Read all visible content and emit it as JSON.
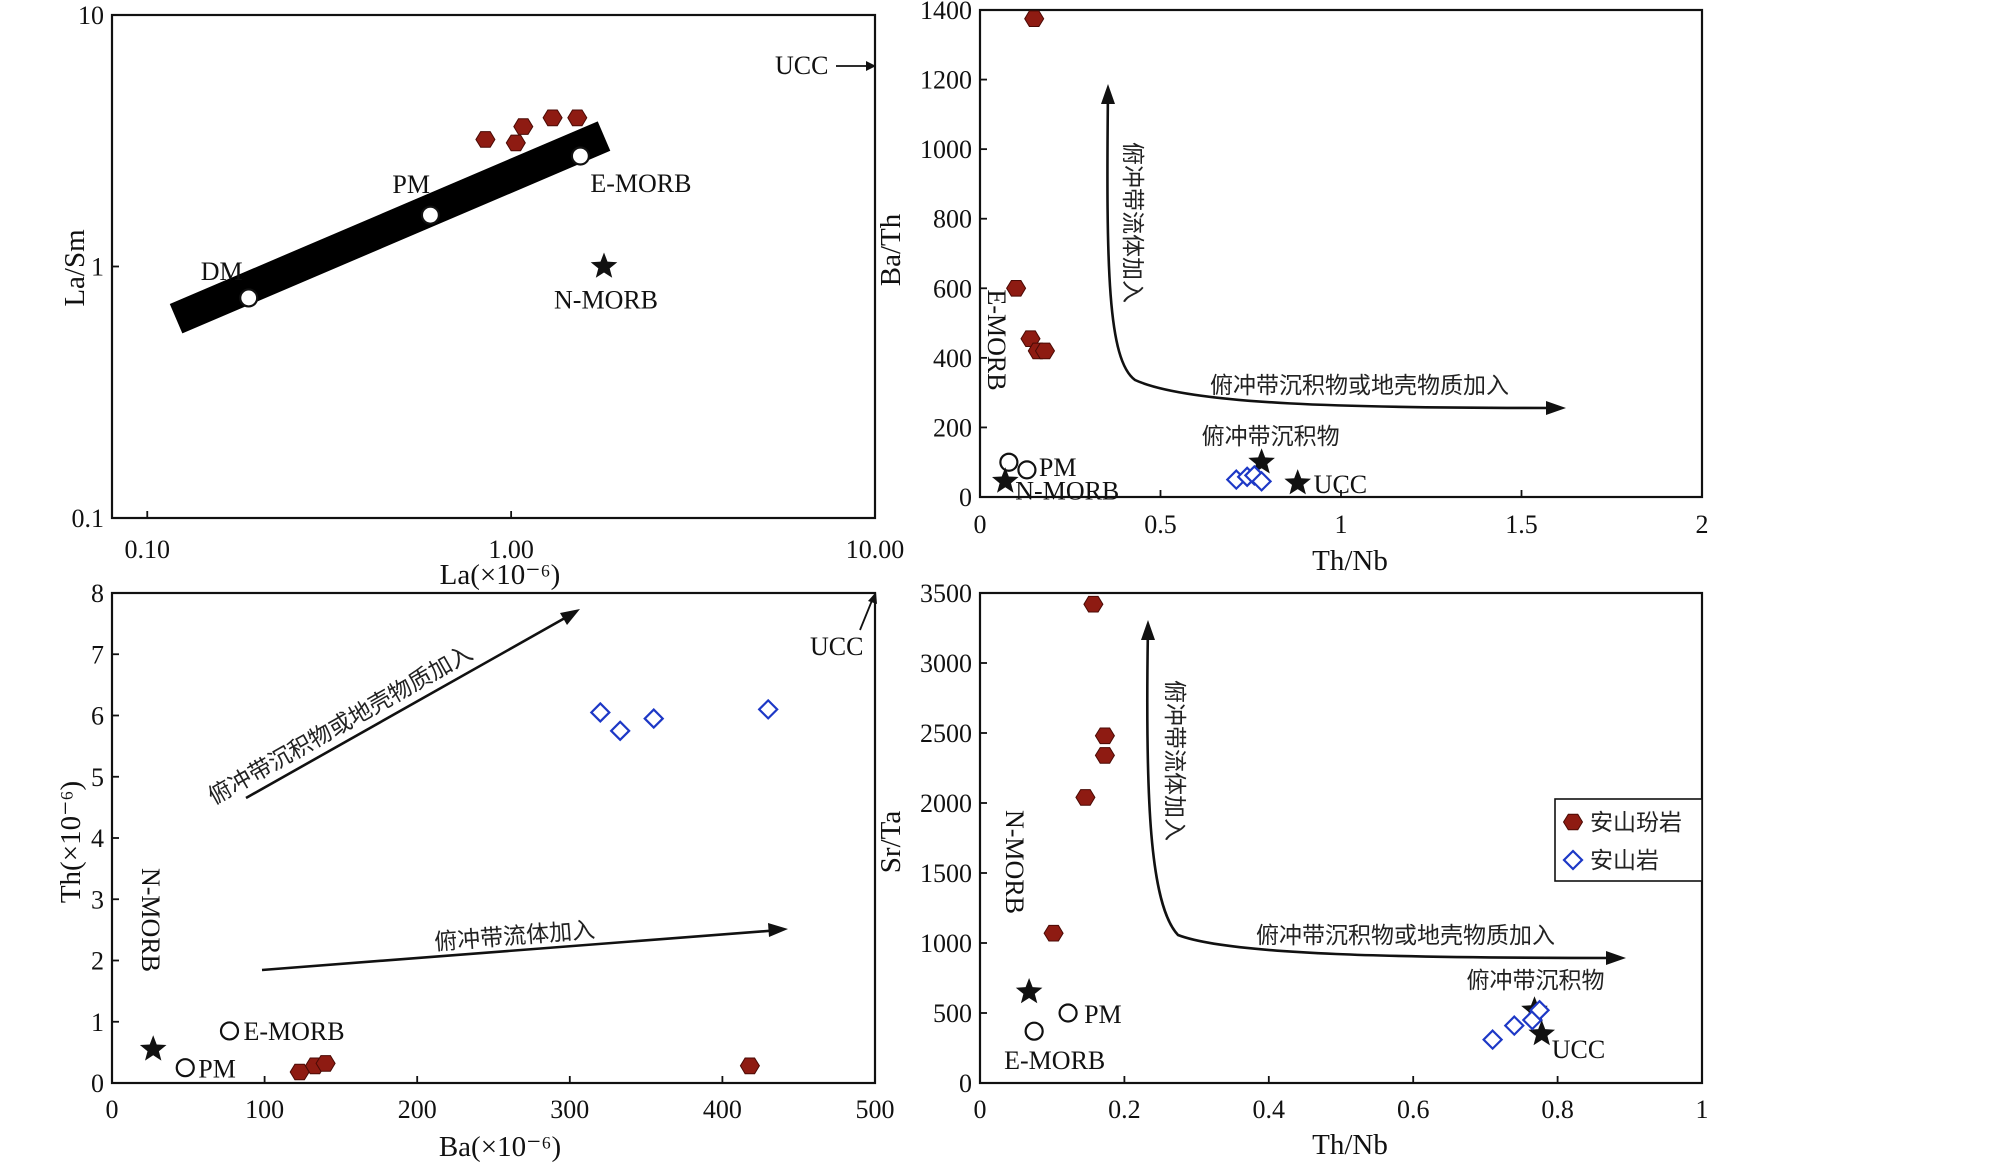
{
  "colors": {
    "andesite_porphyry": "#8e1b12",
    "andesite": "#1d38c6",
    "ink": "#111111"
  },
  "chart_data": [
    {
      "id": "a",
      "type": "scatter",
      "xscale": "log",
      "yscale": "log",
      "xlabel": "La(×10⁻⁶)",
      "ylabel": "La/Sm",
      "xlim": [
        0.08,
        10
      ],
      "ylim": [
        0.1,
        10
      ],
      "xticks": [
        {
          "v": 0.1,
          "label": "0.10"
        },
        {
          "v": 1,
          "label": "1.00"
        },
        {
          "v": 10,
          "label": "10.00"
        }
      ],
      "yticks": [
        {
          "v": 0.1,
          "label": "0.1"
        },
        {
          "v": 1,
          "label": "1"
        },
        {
          "v": 10,
          "label": "10"
        }
      ],
      "series": [
        {
          "name": "安山玢岩",
          "marker": "hexagon",
          "points": [
            [
              0.85,
              3.2
            ],
            [
              1.03,
              3.1
            ],
            [
              1.08,
              3.6
            ],
            [
              1.3,
              3.9
            ],
            [
              1.52,
              3.9
            ]
          ]
        }
      ],
      "refs": [
        {
          "label": "DM",
          "marker": "circle",
          "x": 0.19,
          "y": 0.75
        },
        {
          "label": "PM",
          "marker": "circle",
          "x": 0.6,
          "y": 1.6
        },
        {
          "label": "E-MORB",
          "marker": "circle",
          "x": 1.55,
          "y": 2.75
        },
        {
          "label": "N-MORB",
          "marker": "star",
          "x": 1.8,
          "y": 1.0
        }
      ],
      "band": {
        "from": [
          0.12,
          0.62
        ],
        "to": [
          1.8,
          3.3
        ]
      },
      "ucc_label": "UCC"
    },
    {
      "id": "b",
      "type": "scatter",
      "xlabel": "Th/Nb",
      "ylabel": "Ba/Th",
      "xlim": [
        0,
        2
      ],
      "ylim": [
        0,
        1400
      ],
      "xticks": [
        {
          "v": 0,
          "label": "0"
        },
        {
          "v": 0.5,
          "label": "0.5"
        },
        {
          "v": 1,
          "label": "1"
        },
        {
          "v": 1.5,
          "label": "1.5"
        },
        {
          "v": 2,
          "label": "2"
        }
      ],
      "yticks": [
        {
          "v": 0,
          "label": "0"
        },
        {
          "v": 200,
          "label": "200"
        },
        {
          "v": 400,
          "label": "400"
        },
        {
          "v": 600,
          "label": "600"
        },
        {
          "v": 800,
          "label": "800"
        },
        {
          "v": 1000,
          "label": "1000"
        },
        {
          "v": 1200,
          "label": "1200"
        },
        {
          "v": 1400,
          "label": "1400"
        }
      ],
      "series": [
        {
          "name": "安山玢岩",
          "marker": "hexagon",
          "points": [
            [
              0.15,
              1375
            ],
            [
              0.1,
              600
            ],
            [
              0.14,
              455
            ],
            [
              0.16,
              420
            ],
            [
              0.18,
              420
            ]
          ]
        },
        {
          "name": "安山岩",
          "marker": "diamond",
          "points": [
            [
              0.71,
              50
            ],
            [
              0.74,
              58
            ],
            [
              0.76,
              62
            ],
            [
              0.78,
              45
            ]
          ]
        }
      ],
      "refs": [
        {
          "label": "E-MORB",
          "marker": "circle",
          "x": 0.08,
          "y": 100
        },
        {
          "label": "PM",
          "marker": "circle",
          "x": 0.13,
          "y": 78
        },
        {
          "label": "N-MORB",
          "marker": "star",
          "x": 0.07,
          "y": 45
        },
        {
          "label": "俯冲带沉积物",
          "marker": "star",
          "x": 0.78,
          "y": 100
        },
        {
          "label": "UCC",
          "marker": "star",
          "x": 0.88,
          "y": 40
        }
      ],
      "arrows": {
        "fluid": "俯冲带流体加入",
        "sediment": "俯冲带沉积物或地壳物质加入"
      }
    },
    {
      "id": "c",
      "type": "scatter",
      "xlabel": "Ba(×10⁻⁶)",
      "ylabel": "Th(×10⁻⁶)",
      "xlim": [
        0,
        500
      ],
      "ylim": [
        0,
        8
      ],
      "xticks": [
        {
          "v": 0,
          "label": "0"
        },
        {
          "v": 100,
          "label": "100"
        },
        {
          "v": 200,
          "label": "200"
        },
        {
          "v": 300,
          "label": "300"
        },
        {
          "v": 400,
          "label": "400"
        },
        {
          "v": 500,
          "label": "500"
        }
      ],
      "yticks": [
        {
          "v": 0,
          "label": "0"
        },
        {
          "v": 1,
          "label": "1"
        },
        {
          "v": 2,
          "label": "2"
        },
        {
          "v": 3,
          "label": "3"
        },
        {
          "v": 4,
          "label": "4"
        },
        {
          "v": 5,
          "label": "5"
        },
        {
          "v": 6,
          "label": "6"
        },
        {
          "v": 7,
          "label": "7"
        },
        {
          "v": 8,
          "label": "8"
        }
      ],
      "series": [
        {
          "name": "安山玢岩",
          "marker": "hexagon",
          "points": [
            [
              123,
              0.18
            ],
            [
              133,
              0.28
            ],
            [
              140,
              0.32
            ],
            [
              418,
              0.28
            ]
          ]
        },
        {
          "name": "安山岩",
          "marker": "diamond",
          "points": [
            [
              320,
              6.05
            ],
            [
              333,
              5.75
            ],
            [
              355,
              5.95
            ],
            [
              430,
              6.1
            ]
          ]
        }
      ],
      "refs": [
        {
          "label": "N-MORB",
          "marker": "star",
          "x": 27,
          "y": 0.55
        },
        {
          "label": "E-MORB",
          "marker": "circle",
          "x": 77,
          "y": 0.85
        },
        {
          "label": "PM",
          "marker": "circle",
          "x": 48,
          "y": 0.25
        }
      ],
      "arrows": {
        "sediment": "俯冲带沉积物或地壳物质加入",
        "fluid": "俯冲带流体加入"
      },
      "ucc_label": "UCC"
    },
    {
      "id": "d",
      "type": "scatter",
      "xlabel": "Th/Nb",
      "ylabel": "Sr/Ta",
      "xlim": [
        0,
        1
      ],
      "ylim": [
        0,
        3500
      ],
      "xticks": [
        {
          "v": 0,
          "label": "0"
        },
        {
          "v": 0.2,
          "label": "0.2"
        },
        {
          "v": 0.4,
          "label": "0.4"
        },
        {
          "v": 0.6,
          "label": "0.6"
        },
        {
          "v": 0.8,
          "label": "0.8"
        },
        {
          "v": 1,
          "label": "1"
        }
      ],
      "yticks": [
        {
          "v": 0,
          "label": "0"
        },
        {
          "v": 500,
          "label": "500"
        },
        {
          "v": 1000,
          "label": "1000"
        },
        {
          "v": 1500,
          "label": "1500"
        },
        {
          "v": 2000,
          "label": "2000"
        },
        {
          "v": 2500,
          "label": "2500"
        },
        {
          "v": 3000,
          "label": "3000"
        },
        {
          "v": 3500,
          "label": "3500"
        }
      ],
      "series": [
        {
          "name": "安山玢岩",
          "marker": "hexagon",
          "points": [
            [
              0.157,
              3420
            ],
            [
              0.173,
              2480
            ],
            [
              0.173,
              2340
            ],
            [
              0.146,
              2040
            ],
            [
              0.102,
              1070
            ]
          ]
        },
        {
          "name": "安山岩",
          "marker": "diamond",
          "points": [
            [
              0.71,
              310
            ],
            [
              0.74,
              410
            ],
            [
              0.765,
              450
            ],
            [
              0.775,
              520
            ]
          ]
        }
      ],
      "refs": [
        {
          "label": "N-MORB",
          "marker": "star",
          "x": 0.068,
          "y": 650
        },
        {
          "label": "PM",
          "marker": "circle",
          "x": 0.122,
          "y": 500
        },
        {
          "label": "E-MORB",
          "marker": "circle",
          "x": 0.075,
          "y": 370
        },
        {
          "label": "俯冲带沉积物",
          "marker": "star",
          "x": 0.768,
          "y": 520
        },
        {
          "label": "UCC",
          "marker": "star",
          "x": 0.778,
          "y": 350
        }
      ],
      "arrows": {
        "fluid": "俯冲带流体加入",
        "sediment": "俯冲带沉积物或地壳物质加入"
      },
      "legend": {
        "position": "right",
        "entries": [
          {
            "label": "安山玢岩",
            "marker": "hexagon"
          },
          {
            "label": "安山岩",
            "marker": "diamond"
          }
        ]
      }
    }
  ]
}
